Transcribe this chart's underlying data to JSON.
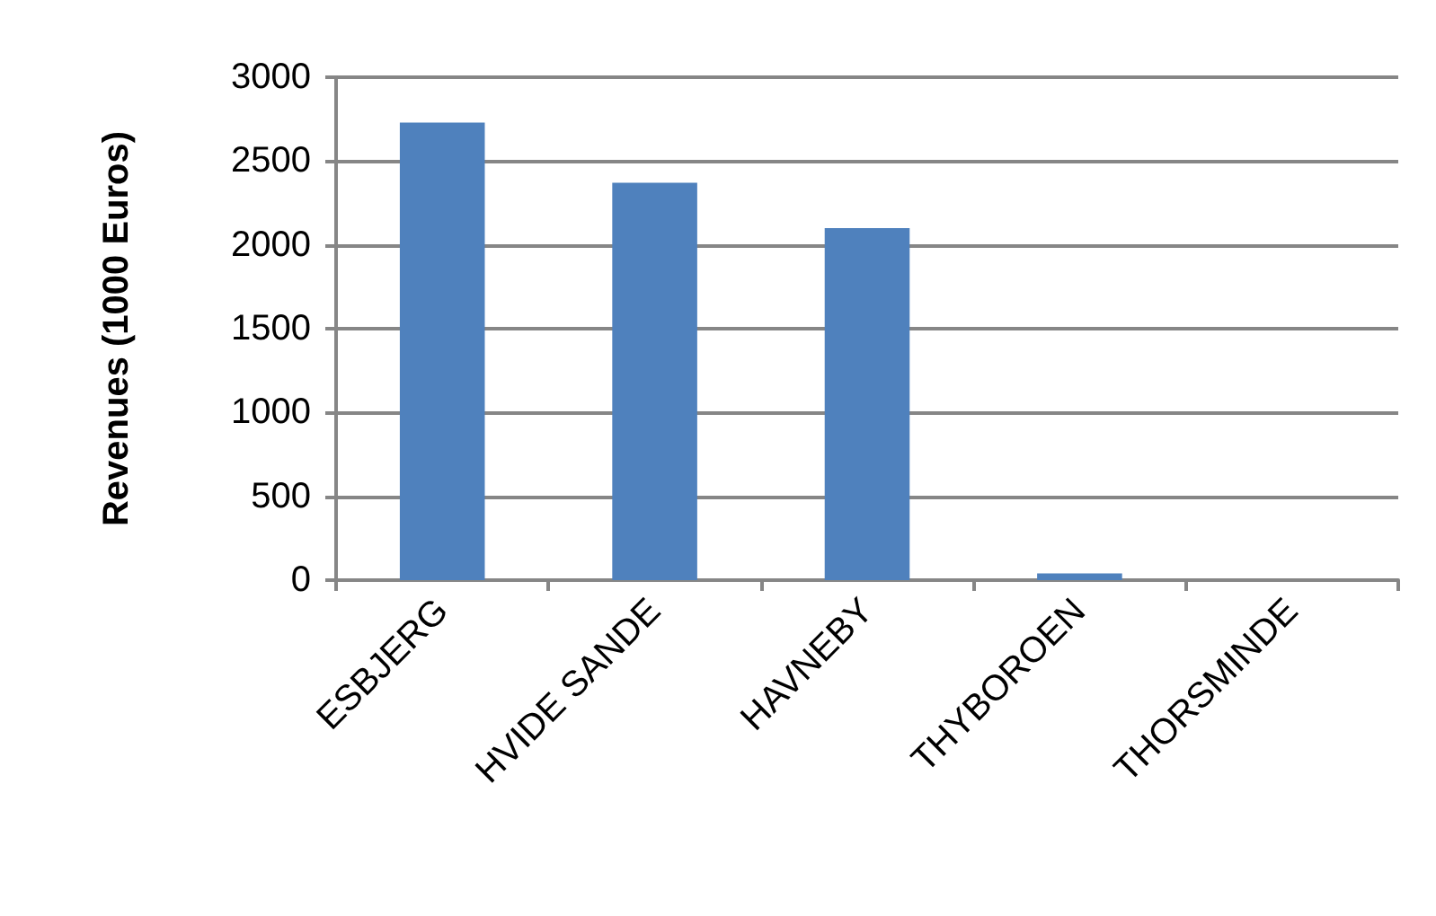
{
  "chart_data": {
    "type": "bar",
    "ylabel": "Revenues (1000 Euros)",
    "categories": [
      "ESBJERG",
      "HVIDE SANDE",
      "HAVNEBY",
      "THYBOROEN",
      "THORSMINDE"
    ],
    "values": [
      2730,
      2370,
      2100,
      40,
      0
    ],
    "color": "#4f81bd",
    "ylim": [
      0,
      3000
    ],
    "yticks": [
      0,
      500,
      1000,
      1500,
      2000,
      2500,
      3000
    ],
    "grid": "y"
  }
}
